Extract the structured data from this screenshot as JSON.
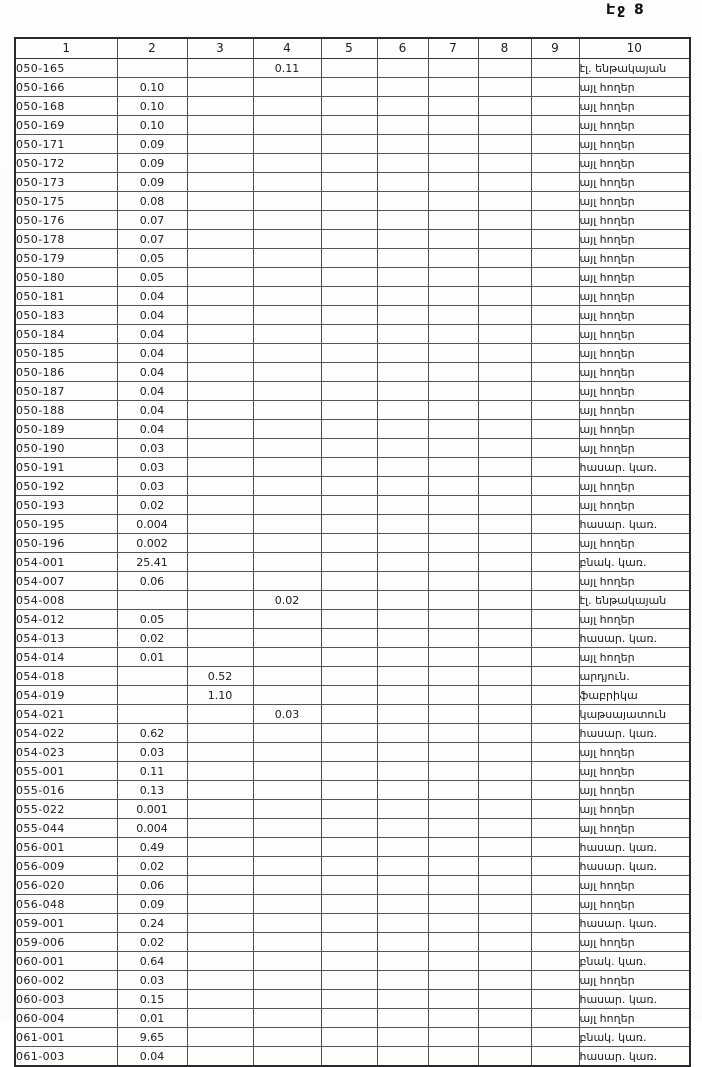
{
  "page_label": "Էջ 8",
  "table": {
    "headers": [
      "1",
      "2",
      "3",
      "4",
      "5",
      "6",
      "7",
      "8",
      "9",
      "10"
    ],
    "column_semantics": [
      "code",
      "col2",
      "col3",
      "col4",
      "col5",
      "col6",
      "col7",
      "col8",
      "col9",
      "landuse"
    ],
    "rows": [
      [
        "050-165",
        "",
        "",
        "0.11",
        "",
        "",
        "",
        "",
        "",
        "էլ. ենթակայան"
      ],
      [
        "050-166",
        "0.10",
        "",
        "",
        "",
        "",
        "",
        "",
        "",
        "այլ հողեր"
      ],
      [
        "050-168",
        "0.10",
        "",
        "",
        "",
        "",
        "",
        "",
        "",
        "այլ հողեր"
      ],
      [
        "050-169",
        "0.10",
        "",
        "",
        "",
        "",
        "",
        "",
        "",
        "այլ հողեր"
      ],
      [
        "050-171",
        "0.09",
        "",
        "",
        "",
        "",
        "",
        "",
        "",
        "այլ հողեր"
      ],
      [
        "050-172",
        "0.09",
        "",
        "",
        "",
        "",
        "",
        "",
        "",
        "այլ հողեր"
      ],
      [
        "050-173",
        "0.09",
        "",
        "",
        "",
        "",
        "",
        "",
        "",
        "այլ հողեր"
      ],
      [
        "050-175",
        "0.08",
        "",
        "",
        "",
        "",
        "",
        "",
        "",
        "այլ հողեր"
      ],
      [
        "050-176",
        "0.07",
        "",
        "",
        "",
        "",
        "",
        "",
        "",
        "այլ հողեր"
      ],
      [
        "050-178",
        "0.07",
        "",
        "",
        "",
        "",
        "",
        "",
        "",
        "այլ հողեր"
      ],
      [
        "050-179",
        "0.05",
        "",
        "",
        "",
        "",
        "",
        "",
        "",
        "այլ հողեր"
      ],
      [
        "050-180",
        "0.05",
        "",
        "",
        "",
        "",
        "",
        "",
        "",
        "այլ հողեր"
      ],
      [
        "050-181",
        "0.04",
        "",
        "",
        "",
        "",
        "",
        "",
        "",
        "այլ հողեր"
      ],
      [
        "050-183",
        "0.04",
        "",
        "",
        "",
        "",
        "",
        "",
        "",
        "այլ հողեր"
      ],
      [
        "050-184",
        "0.04",
        "",
        "",
        "",
        "",
        "",
        "",
        "",
        "այլ հողեր"
      ],
      [
        "050-185",
        "0.04",
        "",
        "",
        "",
        "",
        "",
        "",
        "",
        "այլ հողեր"
      ],
      [
        "050-186",
        "0.04",
        "",
        "",
        "",
        "",
        "",
        "",
        "",
        "այլ հողեր"
      ],
      [
        "050-187",
        "0.04",
        "",
        "",
        "",
        "",
        "",
        "",
        "",
        "այլ հողեր"
      ],
      [
        "050-188",
        "0.04",
        "",
        "",
        "",
        "",
        "",
        "",
        "",
        "այլ հողեր"
      ],
      [
        "050-189",
        "0.04",
        "",
        "",
        "",
        "",
        "",
        "",
        "",
        "այլ հողեր"
      ],
      [
        "050-190",
        "0.03",
        "",
        "",
        "",
        "",
        "",
        "",
        "",
        "այլ հողեր"
      ],
      [
        "050-191",
        "0.03",
        "",
        "",
        "",
        "",
        "",
        "",
        "",
        "հասար. կառ."
      ],
      [
        "050-192",
        "0.03",
        "",
        "",
        "",
        "",
        "",
        "",
        "",
        "այլ հողեր"
      ],
      [
        "050-193",
        "0.02",
        "",
        "",
        "",
        "",
        "",
        "",
        "",
        "այլ հողեր"
      ],
      [
        "050-195",
        "0.004",
        "",
        "",
        "",
        "",
        "",
        "",
        "",
        "հասար. կառ."
      ],
      [
        "050-196",
        "0.002",
        "",
        "",
        "",
        "",
        "",
        "",
        "",
        "այլ հողեր"
      ],
      [
        "054-001",
        "25.41",
        "",
        "",
        "",
        "",
        "",
        "",
        "",
        "բնակ. կառ."
      ],
      [
        "054-007",
        "0.06",
        "",
        "",
        "",
        "",
        "",
        "",
        "",
        "այլ հողեր"
      ],
      [
        "054-008",
        "",
        "",
        "0.02",
        "",
        "",
        "",
        "",
        "",
        "էլ. ենթակայան"
      ],
      [
        "054-012",
        "0.05",
        "",
        "",
        "",
        "",
        "",
        "",
        "",
        "այլ հողեր"
      ],
      [
        "054-013",
        "0.02",
        "",
        "",
        "",
        "",
        "",
        "",
        "",
        "հասար. կառ."
      ],
      [
        "054-014",
        "0.01",
        "",
        "",
        "",
        "",
        "",
        "",
        "",
        "այլ հողեր"
      ],
      [
        "054-018",
        "",
        "0.52",
        "",
        "",
        "",
        "",
        "",
        "",
        "արդյուն."
      ],
      [
        "054-019",
        "",
        "1.10",
        "",
        "",
        "",
        "",
        "",
        "",
        "ֆաբրիկա"
      ],
      [
        "054-021",
        "",
        "",
        "0.03",
        "",
        "",
        "",
        "",
        "",
        "կաթսայատուն"
      ],
      [
        "054-022",
        "0.62",
        "",
        "",
        "",
        "",
        "",
        "",
        "",
        "հասար. կառ."
      ],
      [
        "054-023",
        "0.03",
        "",
        "",
        "",
        "",
        "",
        "",
        "",
        "այլ հողեր"
      ],
      [
        "055-001",
        "0.11",
        "",
        "",
        "",
        "",
        "",
        "",
        "",
        "այլ հողեր"
      ],
      [
        "055-016",
        "0.13",
        "",
        "",
        "",
        "",
        "",
        "",
        "",
        "այլ հողեր"
      ],
      [
        "055-022",
        "0.001",
        "",
        "",
        "",
        "",
        "",
        "",
        "",
        "այլ հողեր"
      ],
      [
        "055-044",
        "0.004",
        "",
        "",
        "",
        "",
        "",
        "",
        "",
        "այլ հողեր"
      ],
      [
        "056-001",
        "0.49",
        "",
        "",
        "",
        "",
        "",
        "",
        "",
        "հասար. կառ."
      ],
      [
        "056-009",
        "0.02",
        "",
        "",
        "",
        "",
        "",
        "",
        "",
        "հասար. կառ."
      ],
      [
        "056-020",
        "0.06",
        "",
        "",
        "",
        "",
        "",
        "",
        "",
        "այլ հողեր"
      ],
      [
        "056-048",
        "0.09",
        "",
        "",
        "",
        "",
        "",
        "",
        "",
        "այլ հողեր"
      ],
      [
        "059-001",
        "0.24",
        "",
        "",
        "",
        "",
        "",
        "",
        "",
        "հասար. կառ."
      ],
      [
        "059-006",
        "0.02",
        "",
        "",
        "",
        "",
        "",
        "",
        "",
        "այլ հողեր"
      ],
      [
        "060-001",
        "0.64",
        "",
        "",
        "",
        "",
        "",
        "",
        "",
        "բնակ. կառ."
      ],
      [
        "060-002",
        "0.03",
        "",
        "",
        "",
        "",
        "",
        "",
        "",
        "այլ հողեր"
      ],
      [
        "060-003",
        "0.15",
        "",
        "",
        "",
        "",
        "",
        "",
        "",
        "հասար. կառ."
      ],
      [
        "060-004",
        "0.01",
        "",
        "",
        "",
        "",
        "",
        "",
        "",
        "այլ հողեր"
      ],
      [
        "061-001",
        "9.65",
        "",
        "",
        "",
        "",
        "",
        "",
        "",
        "բնակ. կառ."
      ],
      [
        "061-003",
        "0.04",
        "",
        "",
        "",
        "",
        "",
        "",
        "",
        "հասար. կառ."
      ]
    ]
  }
}
